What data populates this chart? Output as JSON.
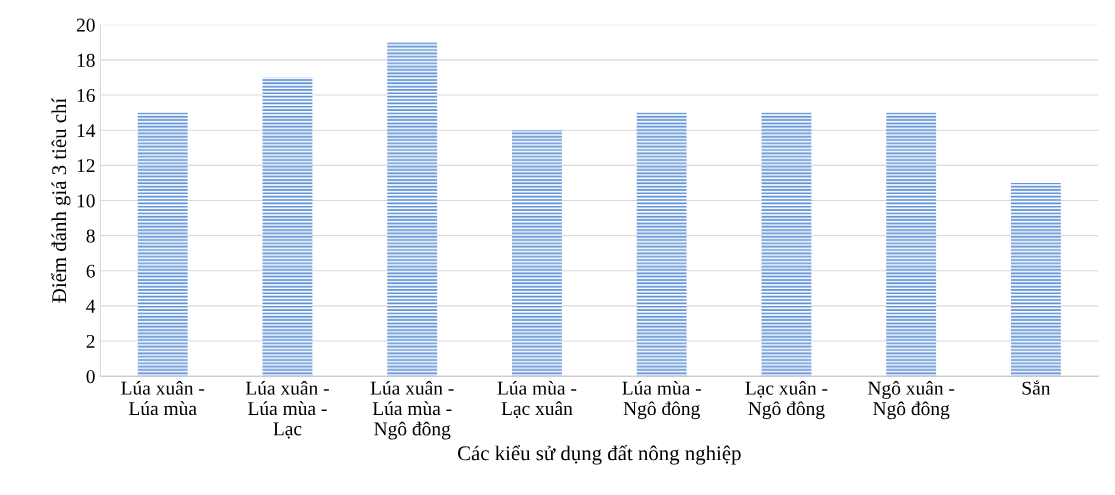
{
  "chart_data": {
    "type": "bar",
    "xlabel": "Các kiểu sử dụng đất nông nghiệp",
    "ylabel": "Điểm đánh giá 3 tiêu chí",
    "categories": [
      "Lúa xuân -\nLúa mùa",
      "Lúa xuân -\nLúa mùa -\nLạc",
      "Lúa xuân -\nLúa mùa -\nNgô đông",
      "Lúa mùa -\nLạc xuân",
      "Lúa mùa -\nNgô đông",
      "Lạc xuân -\nNgô đông",
      "Ngô xuân -\nNgô đông",
      "Sắn"
    ],
    "values": [
      15,
      17,
      19,
      14,
      15,
      15,
      15,
      11
    ],
    "color": "#5b8fd6",
    "ylim": [
      0,
      20
    ],
    "yticks": [
      0,
      2,
      4,
      6,
      8,
      10,
      12,
      14,
      16,
      18,
      20
    ],
    "grid": "y",
    "legend": false
  }
}
